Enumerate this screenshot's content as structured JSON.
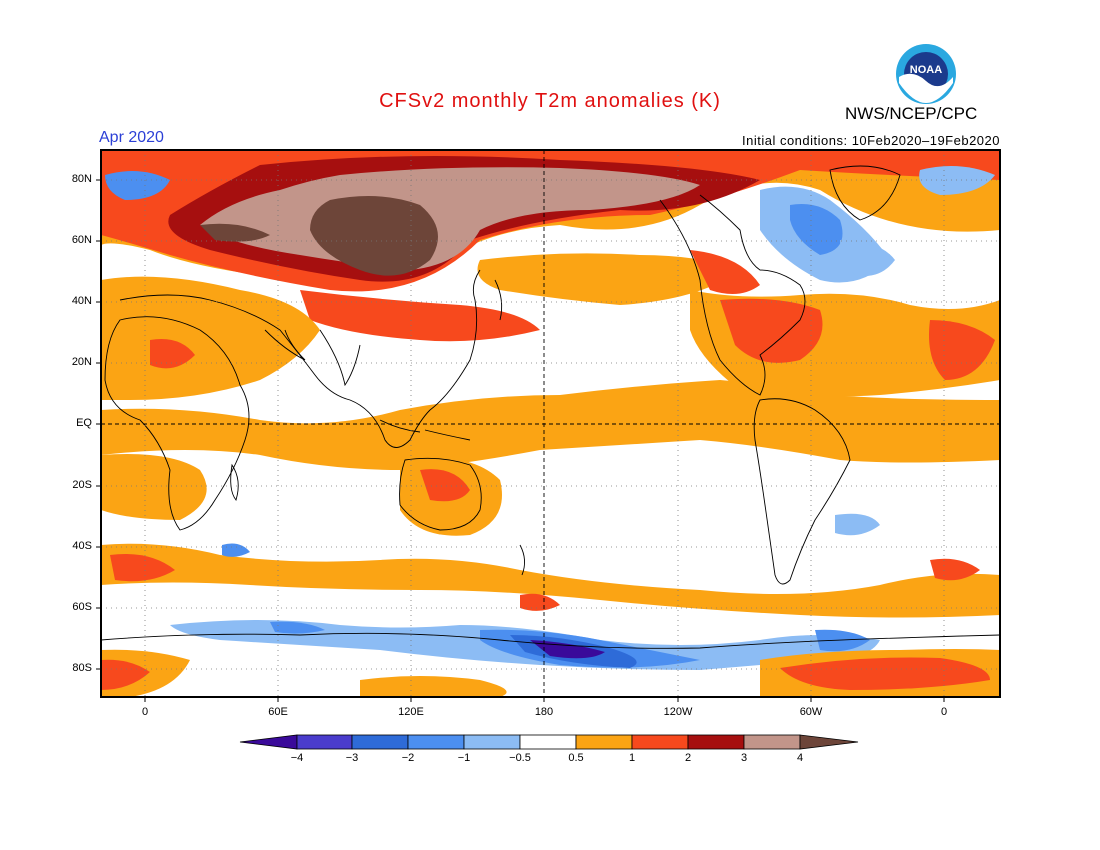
{
  "header": {
    "title": "CFSv2 monthly T2m anomalies (K)",
    "agency": "NWS/NCEP/CPC",
    "month": "Apr 2020",
    "initial_conditions": "Initial conditions: 10Feb2020–19Feb2020",
    "logo_text": "NOAA"
  },
  "map": {
    "lat_labels": [
      "80N",
      "60N",
      "40N",
      "20N",
      "EQ",
      "20S",
      "40S",
      "60S",
      "80S"
    ],
    "lon_labels": [
      "0",
      "60E",
      "120E",
      "180",
      "120W",
      "60W",
      "0"
    ]
  },
  "colorbar": {
    "ticks": [
      "−4",
      "−3",
      "−2",
      "−1",
      "−0.5",
      "0.5",
      "1",
      "2",
      "3",
      "4"
    ],
    "colors": [
      "#3a0a9a",
      "#4a3ccc",
      "#2e6bd8",
      "#4c8ff0",
      "#8cbcf4",
      "#ffffff",
      "#fba414",
      "#f7491d",
      "#a60f0f",
      "#c2958a",
      "#6d4539"
    ]
  }
}
